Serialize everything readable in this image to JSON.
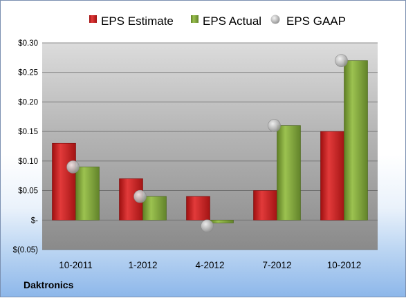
{
  "chart_data": {
    "type": "bar",
    "categories": [
      "10-2011",
      "1-2012",
      "4-2012",
      "7-2012",
      "10-2012"
    ],
    "series": [
      {
        "name": "EPS Estimate",
        "type": "bar",
        "values": [
          0.13,
          0.07,
          0.04,
          0.05,
          0.15
        ]
      },
      {
        "name": "EPS Actual",
        "type": "bar",
        "values": [
          0.09,
          0.04,
          -0.005,
          0.16,
          0.27
        ]
      },
      {
        "name": "EPS GAAP",
        "type": "scatter",
        "values": [
          0.09,
          0.04,
          -0.01,
          0.16,
          0.27
        ]
      }
    ],
    "y_ticks": [
      {
        "value": 0.3,
        "label": "$0.30"
      },
      {
        "value": 0.25,
        "label": "$0.25"
      },
      {
        "value": 0.2,
        "label": "$0.20"
      },
      {
        "value": 0.15,
        "label": "$0.15"
      },
      {
        "value": 0.1,
        "label": "$0.10"
      },
      {
        "value": 0.05,
        "label": "$0.05"
      },
      {
        "value": 0.0,
        "label": "$-"
      },
      {
        "value": -0.05,
        "label": "$(0.05)"
      }
    ],
    "ylim": [
      -0.05,
      0.3
    ],
    "grid": true,
    "legend_position": "top",
    "colors": {
      "estimate": "#cc1f1f",
      "actual": "#7fa33a",
      "gaap": "#b8b8b8"
    },
    "company": "Daktronics"
  }
}
